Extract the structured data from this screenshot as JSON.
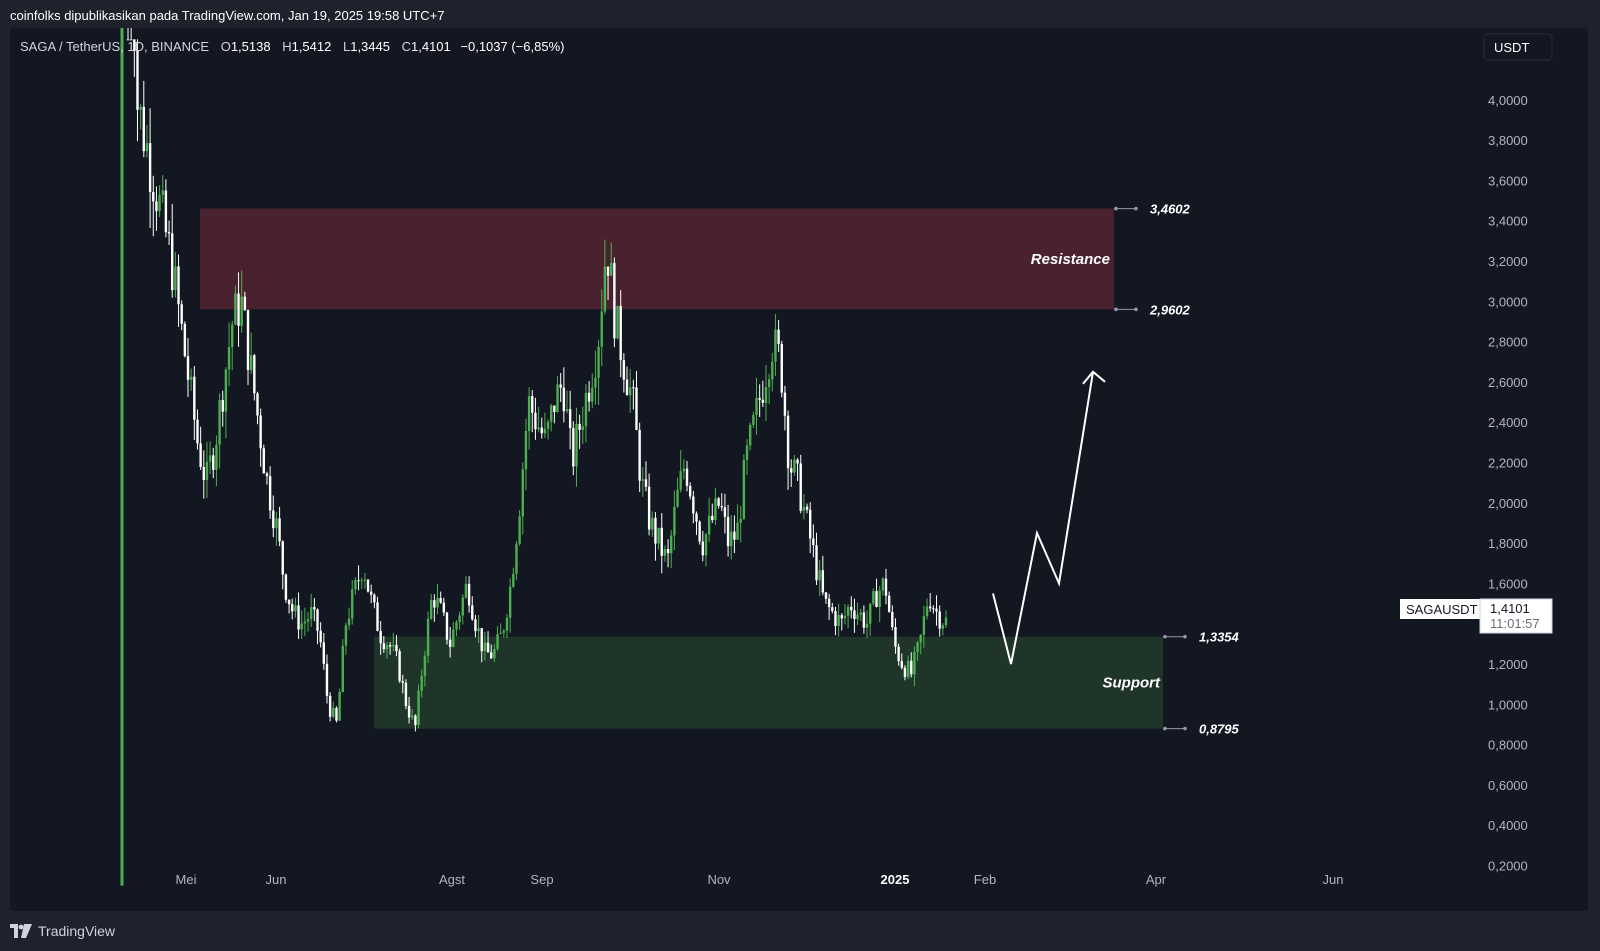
{
  "header": {
    "published_text": "coinfolks dipublikasikan pada TradingView.com, Jan 19, 2025 19:58 UTC+7"
  },
  "symbol_info": {
    "name": "SAGA / TetherUS, 1D, BINANCE",
    "o_label": "O",
    "o_value": "1,5138",
    "h_label": "H",
    "h_value": "1,5412",
    "l_label": "L",
    "l_value": "1,3445",
    "c_label": "C",
    "c_value": "1,4101",
    "change": "−0,1037 (−6,85%)"
  },
  "currency_button": "USDT",
  "price_tag": {
    "symbol": "SAGAUSDT",
    "price": "1,4101",
    "countdown": "11:01:57"
  },
  "footer": {
    "brand": "TradingView"
  },
  "colors": {
    "up": "#4caf50",
    "down": "#ffffff",
    "resistance_zone": "#4a212e",
    "support_zone": "#1f3529",
    "background": "#131722"
  },
  "chart_data": {
    "type": "candlestick",
    "y_axis": {
      "ticks": [
        "4,0000",
        "3,8000",
        "3,6000",
        "3,4000",
        "3,2000",
        "3,0000",
        "2,8000",
        "2,6000",
        "2,4000",
        "2,2000",
        "2,0000",
        "1,8000",
        "1,6000",
        "1,2000",
        "1,0000",
        "0,8000",
        "0,6000",
        "0,4000",
        "0,2000"
      ],
      "range": [
        0.1,
        4.2
      ]
    },
    "x_axis": {
      "ticks": [
        {
          "label": "Mei",
          "bold": false
        },
        {
          "label": "Jun",
          "bold": false
        },
        {
          "label": "Agst",
          "bold": false
        },
        {
          "label": "Sep",
          "bold": false
        },
        {
          "label": "Nov",
          "bold": false
        },
        {
          "label": "2025",
          "bold": true
        },
        {
          "label": "Feb",
          "bold": false
        },
        {
          "label": "Apr",
          "bold": false
        },
        {
          "label": "Jun",
          "bold": false
        }
      ]
    },
    "zones": [
      {
        "label": "Resistance",
        "top": 3.4602,
        "bottom": 2.9602,
        "top_label": "3,4602",
        "bottom_label": "2,9602"
      },
      {
        "label": "Support",
        "top": 1.3354,
        "bottom": 0.8795,
        "top_label": "1,3354",
        "bottom_label": "0,8795"
      }
    ],
    "close_path": [
      5.5,
      4.0,
      3.8,
      3.6,
      3.4,
      3.2,
      2.9,
      2.6,
      2.3,
      2.1,
      2.3,
      2.6,
      2.9,
      3.0,
      2.7,
      2.4,
      2.1,
      1.9,
      1.6,
      1.45,
      1.4,
      1.45,
      1.35,
      1.0,
      0.9,
      1.4,
      1.55,
      1.7,
      1.5,
      1.35,
      1.3,
      1.2,
      1.0,
      0.88,
      1.25,
      1.55,
      1.45,
      1.3,
      1.45,
      1.6,
      1.4,
      1.25,
      1.25,
      1.35,
      1.6,
      2.0,
      2.5,
      2.4,
      2.3,
      2.5,
      2.6,
      2.2,
      2.4,
      2.6,
      2.8,
      3.3,
      2.9,
      2.7,
      2.5,
      2.1,
      1.9,
      1.8,
      1.7,
      2.0,
      2.2,
      2.0,
      1.8,
      1.9,
      2.0,
      1.8,
      1.85,
      2.2,
      2.4,
      2.6,
      2.8,
      2.7,
      2.2,
      2.1,
      1.9,
      1.7,
      1.5,
      1.45,
      1.4,
      1.5,
      1.45,
      1.4,
      1.55,
      1.6,
      1.3,
      1.2,
      1.15,
      1.3,
      1.55,
      1.45,
      1.41
    ],
    "projection": [
      1.55,
      1.2,
      1.85,
      1.6,
      2.65
    ]
  }
}
